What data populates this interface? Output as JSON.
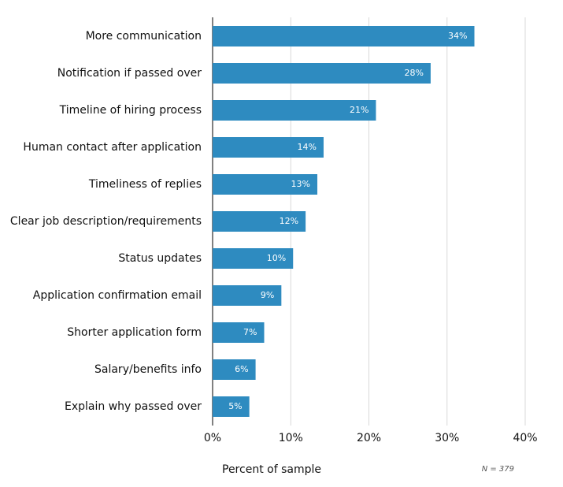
{
  "chart_data": {
    "type": "bar",
    "orientation": "horizontal",
    "categories": [
      "More communication",
      "Notification if passed over",
      "Timeline of hiring process",
      "Human contact after application",
      "Timeliness of replies",
      "Clear job description/requirements",
      "Status updates",
      "Application confirmation email",
      "Shorter application form",
      "Salary/benefits info",
      "Explain why passed over"
    ],
    "values": [
      33.5,
      27.9,
      20.9,
      14.2,
      13.4,
      11.9,
      10.3,
      8.8,
      6.6,
      5.5,
      4.7
    ],
    "value_labels": [
      "34%",
      "28%",
      "21%",
      "14%",
      "13%",
      "12%",
      "10%",
      "9%",
      "7%",
      "6%",
      "5%"
    ],
    "color": "#2e8bc0",
    "xlim": [
      0,
      40
    ],
    "xticks": [
      {
        "value": 0,
        "label": "0%"
      },
      {
        "value": 10,
        "label": "10%"
      },
      {
        "value": 20,
        "label": "20%"
      },
      {
        "value": 30,
        "label": "30%"
      },
      {
        "value": 40,
        "label": "40%"
      }
    ],
    "grid": true,
    "xlabel": "Percent of sample",
    "note": "N = 379"
  }
}
